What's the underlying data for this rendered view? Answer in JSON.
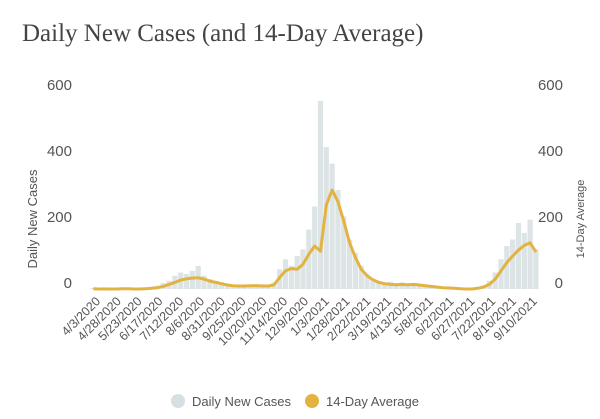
{
  "chart_data": {
    "type": "bar+line",
    "title": "Daily New Cases (and 14-Day Average)",
    "ylabel": "Daily New Cases",
    "y2label": "14-Day Average",
    "ylim": [
      0,
      600
    ],
    "y2lim": [
      0,
      600
    ],
    "yticks": [
      0,
      200,
      400,
      600
    ],
    "grid": false,
    "legend_position": "bottom",
    "xtick_labels": [
      "4/3/2020",
      "4/28/2020",
      "5/23/2020",
      "6/17/2020",
      "7/12/2020",
      "8/6/2020",
      "8/31/2020",
      "9/25/2020",
      "10/20/2020",
      "11/14/2020",
      "12/9/2020",
      "1/3/2021",
      "1/28/2021",
      "2/22/2021",
      "3/19/2021",
      "4/13/2021",
      "5/8/2021",
      "6/2/2021",
      "6/27/2021",
      "7/22/2021",
      "8/16/2021",
      "9/10/2021"
    ],
    "x": [
      "4/1/2020",
      "4/8/2020",
      "4/15/2020",
      "4/22/2020",
      "4/29/2020",
      "5/6/2020",
      "5/13/2020",
      "5/20/2020",
      "5/27/2020",
      "6/3/2020",
      "6/10/2020",
      "6/17/2020",
      "6/24/2020",
      "7/1/2020",
      "7/8/2020",
      "7/15/2020",
      "7/22/2020",
      "7/29/2020",
      "8/5/2020",
      "8/12/2020",
      "8/19/2020",
      "8/26/2020",
      "9/2/2020",
      "9/9/2020",
      "9/16/2020",
      "9/23/2020",
      "9/30/2020",
      "10/7/2020",
      "10/14/2020",
      "10/21/2020",
      "10/28/2020",
      "11/4/2020",
      "11/11/2020",
      "11/18/2020",
      "11/25/2020",
      "12/2/2020",
      "12/9/2020",
      "12/16/2020",
      "12/23/2020",
      "12/30/2020",
      "1/6/2021",
      "1/13/2021",
      "1/20/2021",
      "1/27/2021",
      "2/3/2021",
      "2/10/2021",
      "2/17/2021",
      "2/24/2021",
      "3/3/2021",
      "3/10/2021",
      "3/17/2021",
      "3/24/2021",
      "3/31/2021",
      "4/7/2021",
      "4/14/2021",
      "4/21/2021",
      "4/28/2021",
      "5/5/2021",
      "5/12/2021",
      "5/19/2021",
      "5/26/2021",
      "6/2/2021",
      "6/9/2021",
      "6/16/2021",
      "6/23/2021",
      "6/30/2021",
      "7/7/2021",
      "7/14/2021",
      "7/21/2021",
      "7/28/2021",
      "8/4/2021",
      "8/11/2021",
      "8/18/2021",
      "8/25/2021",
      "9/1/2021",
      "9/8/2021",
      "9/15/2021"
    ],
    "series": [
      {
        "name": "Daily New Cases",
        "type": "bar",
        "color": "#d6dfe1",
        "values": [
          3,
          2,
          5,
          3,
          2,
          4,
          3,
          2,
          4,
          5,
          6,
          10,
          18,
          25,
          40,
          50,
          45,
          55,
          70,
          40,
          30,
          25,
          20,
          15,
          12,
          10,
          14,
          12,
          15,
          14,
          12,
          20,
          60,
          90,
          70,
          100,
          120,
          180,
          250,
          570,
          430,
          380,
          300,
          220,
          150,
          110,
          70,
          45,
          30,
          25,
          20,
          22,
          18,
          20,
          15,
          18,
          12,
          10,
          8,
          6,
          5,
          4,
          3,
          3,
          2,
          4,
          6,
          10,
          25,
          50,
          90,
          130,
          150,
          200,
          170,
          210,
          120
        ]
      },
      {
        "name": "14-Day Average",
        "type": "line",
        "color": "#e3b341",
        "values": [
          1,
          0,
          0,
          0,
          0,
          1,
          1,
          0,
          0,
          1,
          2,
          4,
          8,
          14,
          20,
          27,
          31,
          33,
          34,
          30,
          24,
          20,
          16,
          12,
          10,
          9,
          9,
          10,
          10,
          9,
          9,
          12,
          35,
          55,
          62,
          60,
          75,
          105,
          130,
          115,
          255,
          300,
          265,
          205,
          140,
          95,
          60,
          40,
          28,
          20,
          16,
          14,
          13,
          14,
          13,
          14,
          12,
          10,
          8,
          6,
          4,
          3,
          2,
          1,
          0,
          0,
          2,
          6,
          14,
          30,
          55,
          80,
          100,
          118,
          132,
          140,
          112
        ]
      }
    ]
  }
}
